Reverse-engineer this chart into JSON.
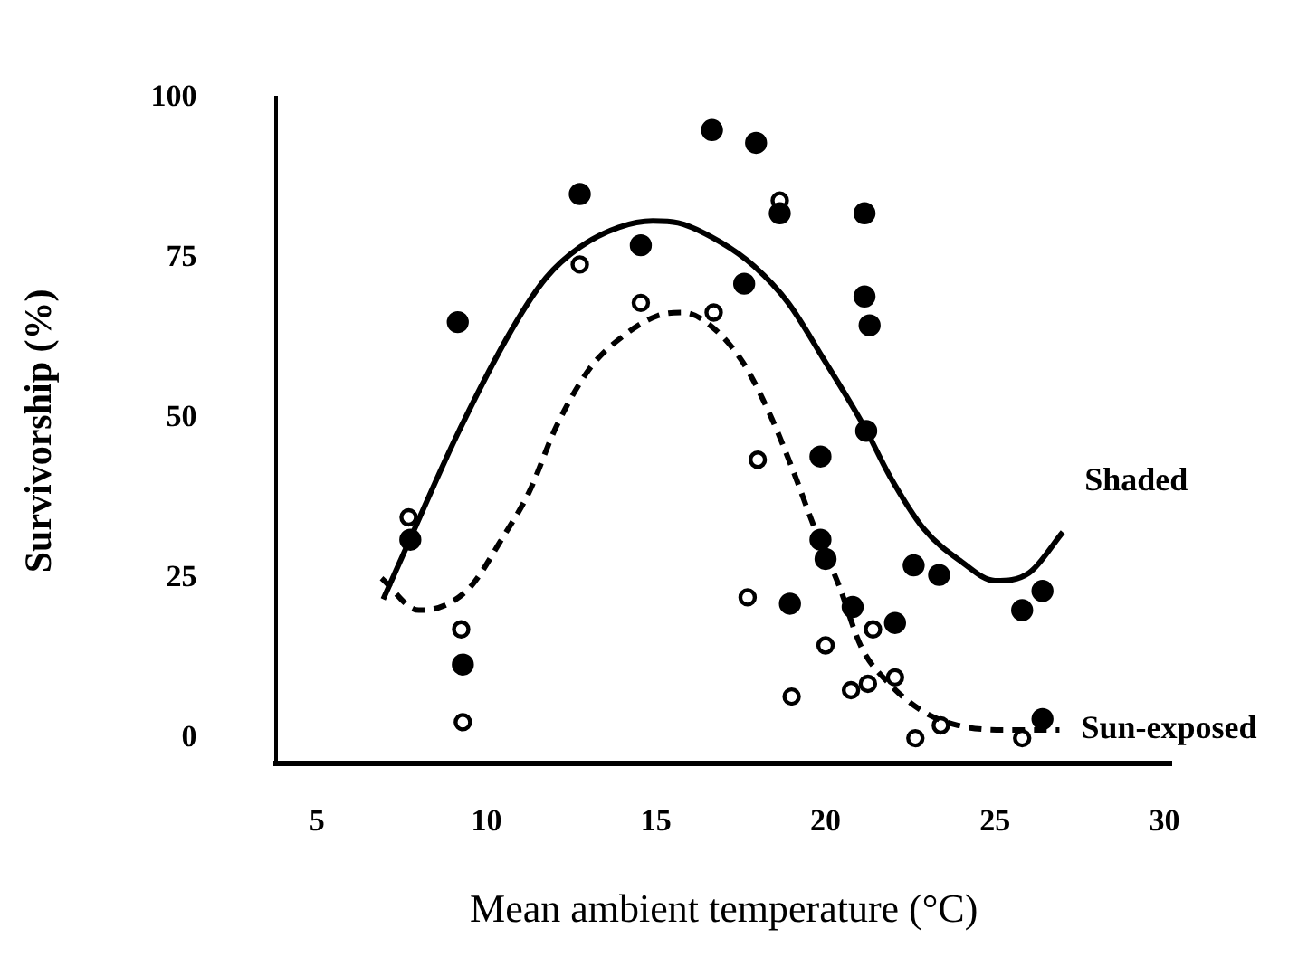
{
  "chart_data": {
    "type": "scatter",
    "xlabel": "Mean ambient temperature (°C)",
    "ylabel": "Survivorship (%)",
    "xlim": [
      3.8,
      30.2
    ],
    "ylim": [
      -4,
      100
    ],
    "xticks": [
      5,
      10,
      15,
      20,
      25,
      30
    ],
    "yticks": [
      0,
      25,
      50,
      75,
      100
    ],
    "grid": false,
    "legend": false,
    "series": [
      {
        "type": "line",
        "name": "Shaded",
        "color": "#000000",
        "line_style": "solid",
        "marker": "none",
        "x": [
          6.95,
          7.75,
          9.15,
          10.75,
          11.75,
          12.75,
          13.9,
          14.9,
          15.65,
          16.9,
          17.9,
          18.9,
          19.9,
          21.15,
          21.9,
          22.9,
          24.0,
          25.0,
          26.0,
          27.0
        ],
        "values": [
          21.7,
          31.2,
          47.6,
          63.9,
          71.9,
          76.7,
          79.8,
          80.8,
          80.5,
          77.5,
          73.7,
          68,
          59.6,
          48.6,
          40.9,
          32.7,
          27.6,
          24.6,
          25.8,
          32.2
        ]
      },
      {
        "type": "line",
        "name": "Sun-exposed",
        "color": "#000000",
        "line_style": "dashed",
        "marker": "none",
        "x": [
          6.9,
          8.0,
          8.75,
          9.55,
          10.4,
          11.25,
          12.05,
          13.05,
          14.05,
          15.05,
          15.8,
          16.55,
          17.55,
          18.4,
          19.05,
          19.65,
          20.4,
          21.05,
          21.9,
          22.9,
          23.9,
          25.25,
          26.9
        ],
        "values": [
          25,
          20,
          20.7,
          23.8,
          30.7,
          38.4,
          48.6,
          57.8,
          62.9,
          66,
          66.5,
          64.7,
          58.8,
          50.1,
          41.7,
          33.2,
          23.8,
          14.3,
          8.4,
          4.1,
          2.0,
          1.3,
          1.3
        ]
      },
      {
        "color": "#000000",
        "marker": "circle",
        "x": [
          9.15,
          7.75,
          9.3,
          12.75,
          14.55,
          16.65,
          17.95,
          18.65,
          21.15,
          17.6,
          21.15,
          21.3,
          21.2,
          19.85,
          19.85,
          20.0,
          22.6,
          23.35,
          18.95,
          20.8,
          22.05,
          26.4,
          25.8,
          26.4
        ],
        "values": [
          65,
          31,
          11.5,
          85,
          77,
          95,
          93,
          82,
          82,
          71,
          69,
          64.5,
          48,
          44,
          31,
          28,
          27,
          25.5,
          21,
          20.5,
          18,
          23,
          20,
          3
        ]
      },
      {
        "color": "#000000",
        "marker": "circle",
        "x": [
          7.7,
          9.25,
          9.3,
          12.75,
          14.55,
          16.7,
          18.65,
          18.0,
          17.7,
          21.4,
          20.0,
          22.05,
          19.0,
          20.75,
          21.25,
          22.65,
          23.4,
          25.8
        ],
        "values": [
          34.5,
          17,
          2.5,
          74,
          68,
          66.5,
          84,
          43.5,
          22,
          17,
          14.5,
          9.5,
          6.5,
          7.5,
          8.5,
          0,
          2,
          0
        ]
      }
    ]
  }
}
